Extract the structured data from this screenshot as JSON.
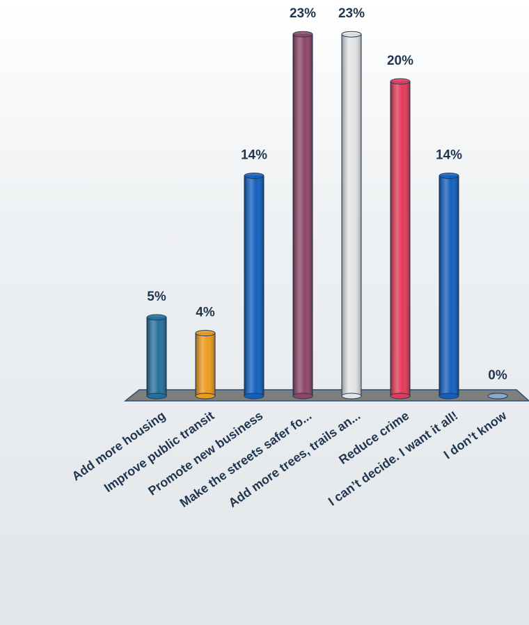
{
  "chart_data": {
    "type": "bar",
    "categories": [
      "Add more housing",
      "Improve public transit",
      "Promote new business",
      "Make the streets safer fo...",
      "Add more trees, trails an...",
      "Reduce crime",
      "I can’t decide. I want it all!",
      "I don’t know"
    ],
    "values": [
      5,
      4,
      14,
      23,
      23,
      20,
      14,
      0
    ],
    "value_labels": [
      "5%",
      "4%",
      "14%",
      "23%",
      "23%",
      "20%",
      "14%",
      "0%"
    ],
    "colors": [
      "#246f9c",
      "#ec9a1c",
      "#125fc0",
      "#8e4567",
      "#e4e4e4",
      "#e23a58",
      "#125fc0",
      "#8ea6cc"
    ]
  }
}
